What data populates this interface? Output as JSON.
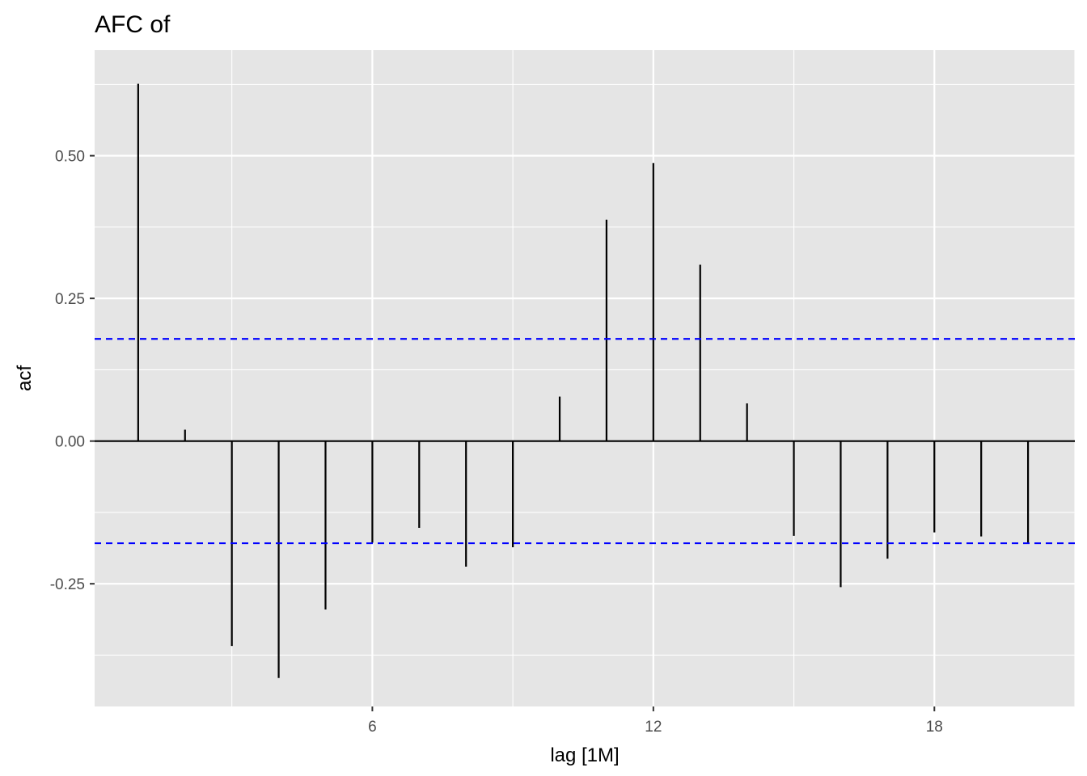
{
  "chart_data": {
    "type": "bar",
    "title": "AFC of",
    "xlabel": "lag [1M]",
    "ylabel": "acf",
    "xlim": [
      0.07,
      21.0
    ],
    "ylim": [
      -0.465,
      0.685
    ],
    "x_ticks": [
      6,
      12,
      18
    ],
    "y_ticks": [
      -0.25,
      0.0,
      0.25,
      0.5
    ],
    "y_tick_labels": [
      "-0.25",
      "0.00",
      "0.25",
      "0.50"
    ],
    "x_tick_labels": [
      "6",
      "12",
      "18"
    ],
    "lags": [
      1,
      2,
      3,
      4,
      5,
      6,
      7,
      8,
      9,
      10,
      11,
      12,
      13,
      14,
      15,
      16,
      17,
      18,
      19,
      20
    ],
    "values": [
      0.626,
      0.02,
      -0.359,
      -0.415,
      -0.295,
      -0.178,
      -0.152,
      -0.22,
      -0.186,
      0.078,
      0.388,
      0.487,
      0.309,
      0.066,
      -0.166,
      -0.256,
      -0.206,
      -0.16,
      -0.167,
      -0.178
    ],
    "confidence_bound": 0.179,
    "colors": {
      "panel": "#e5e5e5",
      "grid": "#ffffff",
      "bar": "#000000",
      "bound": "#0000ff",
      "zero_line": "#000000"
    },
    "grid": true,
    "legend": "none"
  }
}
